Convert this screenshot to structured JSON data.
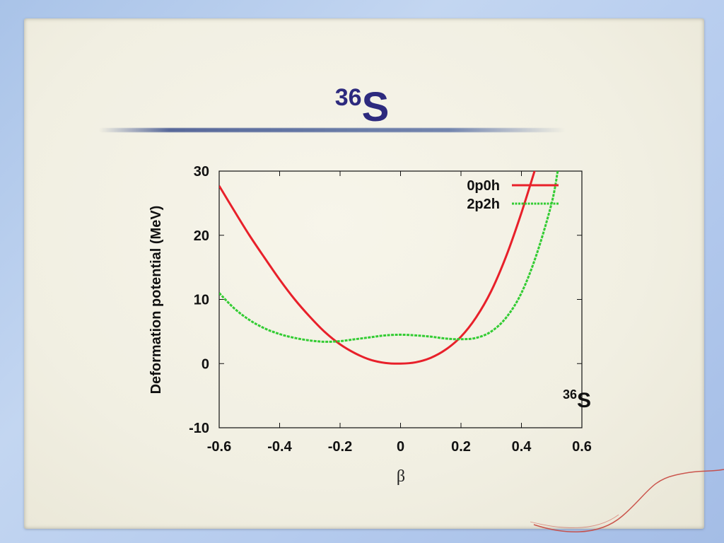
{
  "slide": {
    "title_mass": "36",
    "title_element": "S"
  },
  "chart_data": {
    "type": "line",
    "xlabel": "β",
    "ylabel": "Deformation potential (MeV)",
    "xlim": [
      -0.6,
      0.6
    ],
    "ylim": [
      -10,
      30
    ],
    "xticks": [
      "-0.6",
      "-0.4",
      "-0.2",
      "0",
      "0.2",
      "0.4",
      "0.6"
    ],
    "yticks": [
      "-10",
      "0",
      "10",
      "20",
      "30"
    ],
    "xtick_values": [
      -0.6,
      -0.4,
      -0.2,
      0,
      0.2,
      0.4,
      0.6
    ],
    "ytick_values": [
      -10,
      0,
      10,
      20,
      30
    ],
    "grid": false,
    "legend_position": "top-right",
    "annotation": {
      "mass": "36",
      "element": "S"
    },
    "series": [
      {
        "name": "0p0h",
        "color": "#e8202a",
        "x": [
          -0.6,
          -0.55,
          -0.5,
          -0.45,
          -0.4,
          -0.35,
          -0.3,
          -0.25,
          -0.2,
          -0.15,
          -0.1,
          -0.05,
          0,
          0.05,
          0.1,
          0.15,
          0.2,
          0.25,
          0.3,
          0.35,
          0.4,
          0.45
        ],
        "y": [
          27.7,
          23.8,
          20.0,
          16.5,
          13.1,
          10.0,
          7.3,
          4.9,
          3.0,
          1.6,
          0.6,
          0.1,
          0.0,
          0.2,
          0.9,
          2.2,
          4.2,
          7.2,
          11.3,
          16.8,
          23.5,
          31.0
        ]
      },
      {
        "name": "2p2h",
        "color": "#33cc33",
        "x": [
          -0.6,
          -0.55,
          -0.5,
          -0.45,
          -0.4,
          -0.35,
          -0.3,
          -0.25,
          -0.2,
          -0.15,
          -0.1,
          -0.05,
          0,
          0.05,
          0.1,
          0.15,
          0.2,
          0.25,
          0.3,
          0.35,
          0.4,
          0.45,
          0.5,
          0.52
        ],
        "y": [
          11.0,
          8.6,
          6.8,
          5.5,
          4.6,
          4.0,
          3.6,
          3.4,
          3.5,
          3.8,
          4.1,
          4.4,
          4.5,
          4.4,
          4.2,
          3.9,
          3.8,
          4.0,
          5.0,
          7.2,
          11.0,
          17.0,
          25.0,
          30.0
        ]
      }
    ]
  }
}
